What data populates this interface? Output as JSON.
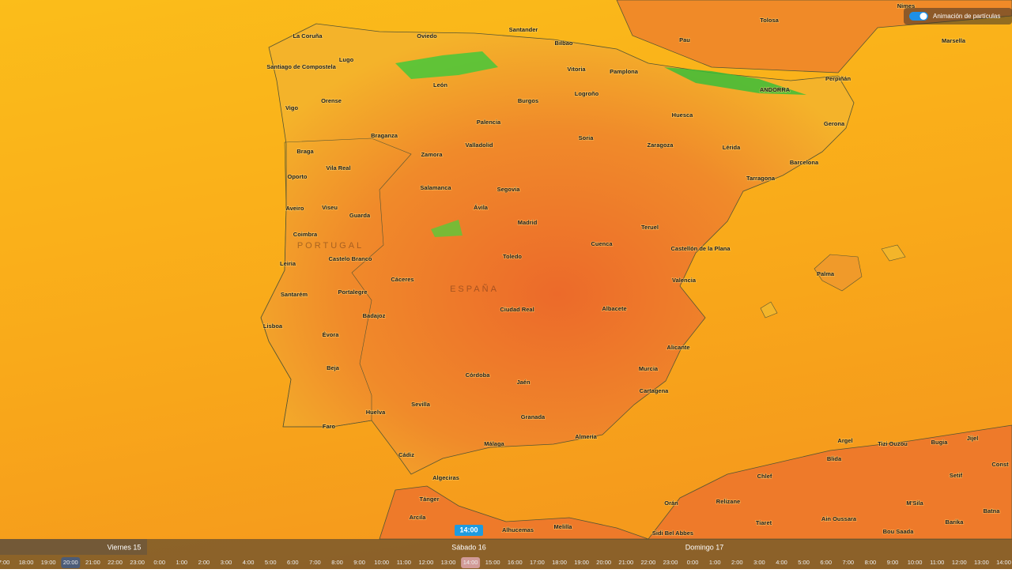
{
  "toggle_label": "Animación de partículas",
  "current_time": "14:00",
  "cities": [
    "Nimes",
    "Tolosa",
    "Marsella",
    "Pau",
    "Perpiñán",
    "La Coruña",
    "Oviedo",
    "Santander",
    "Bilbao",
    "Lugo",
    "Santiago de Compostela",
    "León",
    "Vitoria",
    "Pamplona",
    "ANDORRA",
    "Vigo",
    "Orense",
    "Burgos",
    "Logroño",
    "Huesca",
    "Gerona",
    "Braganza",
    "Palencia",
    "Soria",
    "Lérida",
    "Zaragoza",
    "Braga",
    "Valladolid",
    "Zamora",
    "Barcelona",
    "Vila Real",
    "Oporto",
    "Tarragona",
    "Salamanca",
    "Segovia",
    "Viseu",
    "Aveiro",
    "Guarda",
    "Ávila",
    "Madrid",
    "Teruel",
    "Coimbra",
    "Cuenca",
    "PORTUGAL",
    "Castelo Branco",
    "Castellón de la Plana",
    "Toledo",
    "Leiria",
    "Palma",
    "Valencia",
    "Cáceres",
    "ESPAÑA",
    "Santarém",
    "Portalegre",
    "Ciudad Real",
    "Albacete",
    "Badajoz",
    "Lisboa",
    "Évora",
    "Alicante",
    "Beja",
    "Murcia",
    "Córdoba",
    "Jaén",
    "Cartagena",
    "Sevilla",
    "Huelva",
    "Granada",
    "Faro",
    "Almería",
    "Málaga",
    "Argel",
    "Tizi Ouzou",
    "Bugia",
    "Jijel",
    "Blida",
    "Cádiz",
    "Algeciras",
    "Chlef",
    "Setif",
    "Orán",
    "Relizane",
    "M'Sila",
    "Batna",
    "Tánger",
    "Tiaret",
    "Ain Oussara",
    "Barika",
    "Arcila",
    "Alhucemas",
    "Melilla",
    "Sidi Bel Abbes",
    "Bou Saada",
    "Const"
  ],
  "days": [
    "Viernes 15",
    "Sábado 16",
    "Domingo 17"
  ],
  "hours": [
    "7:00",
    "18:00",
    "19:00",
    "20:00",
    "21:00",
    "22:00",
    "23:00",
    "0:00",
    "1:00",
    "2:00",
    "3:00",
    "4:00",
    "5:00",
    "6:00",
    "7:00",
    "8:00",
    "9:00",
    "10:00",
    "11:00",
    "12:00",
    "13:00",
    "14:00",
    "15:00",
    "16:00",
    "17:00",
    "18:00",
    "19:00",
    "20:00",
    "21:00",
    "22:00",
    "23:00",
    "0:00",
    "1:00",
    "2:00",
    "3:00",
    "4:00",
    "5:00",
    "6:00",
    "7:00",
    "8:00",
    "9:00",
    "10:00",
    "11:00",
    "12:00",
    "13:00",
    "14:00"
  ]
}
